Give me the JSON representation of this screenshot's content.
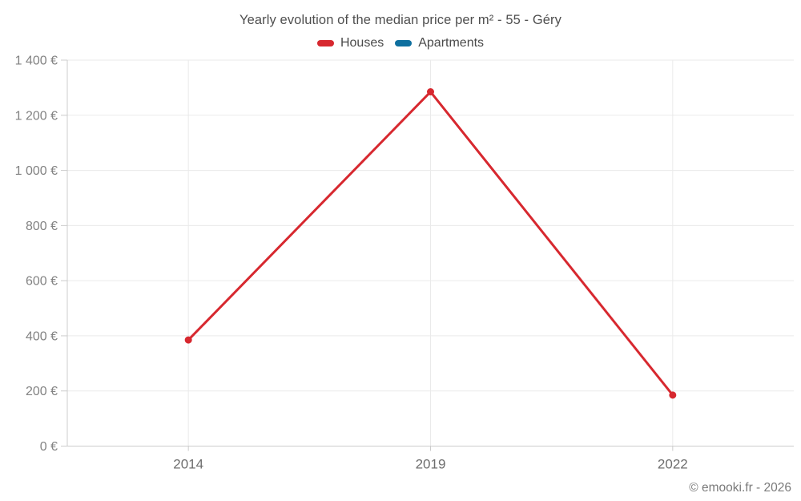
{
  "header": {
    "title": "Yearly evolution of the median price per m² - 55 - Géry"
  },
  "legend": {
    "items": [
      {
        "label": "Houses",
        "color": "#d7282f"
      },
      {
        "label": "Apartments",
        "color": "#0e6f9f"
      }
    ]
  },
  "footer": {
    "text": "© emooki.fr - 2026"
  },
  "chart_data": {
    "type": "line",
    "title": "Yearly evolution of the median price per m² - 55 - Géry",
    "categories": [
      "2014",
      "2019",
      "2022"
    ],
    "series": [
      {
        "name": "Houses",
        "color": "#d7282f",
        "values": [
          385,
          1285,
          185
        ]
      },
      {
        "name": "Apartments",
        "color": "#0e6f9f",
        "values": []
      }
    ],
    "xlabel": "",
    "ylabel": "",
    "ylim": [
      0,
      1400
    ],
    "ytick_step": 200,
    "ytick_labels": [
      "0 €",
      "200 €",
      "400 €",
      "600 €",
      "800 €",
      "1 000 €",
      "1 200 €",
      "1 400 €"
    ],
    "yunit": "€",
    "grid": true,
    "legend_position": "top"
  },
  "style": {
    "grid_color": "#eaeaea",
    "axis_color": "#cccccc",
    "ytick_label_color": "#828282",
    "xtick_label_color": "#6e6e6e",
    "line_width": 3,
    "point_radius": 4.5
  }
}
